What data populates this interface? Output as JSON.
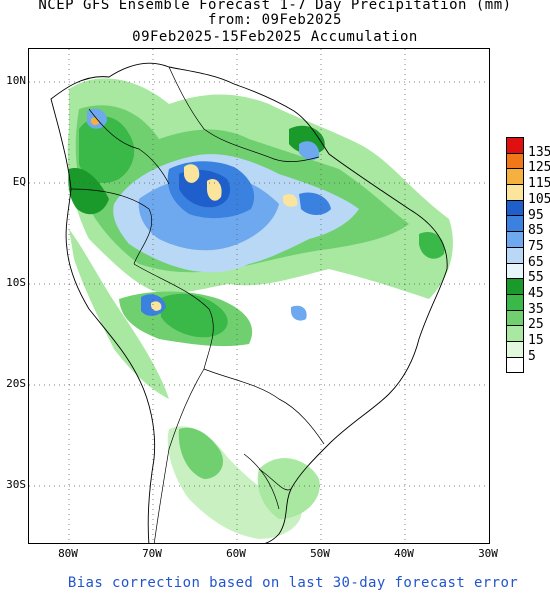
{
  "title": {
    "line1": "NCEP GFS Ensemble Forecast 1-7 Day Precipitation (mm)",
    "line2": "from: 09Feb2025",
    "line3": "09Feb2025-15Feb2025 Accumulation"
  },
  "footer": "Bias correction based on last 30-day forecast error",
  "axes": {
    "lat_labels": [
      "10N",
      "EQ",
      "10S",
      "20S",
      "30S"
    ],
    "lon_labels": [
      "80W",
      "70W",
      "60W",
      "50W",
      "40W",
      "30W"
    ]
  },
  "legend": {
    "labels": [
      "135",
      "125",
      "115",
      "105",
      "95",
      "85",
      "75",
      "65",
      "55",
      "45",
      "35",
      "25",
      "15",
      "5"
    ],
    "colors": [
      "#e01010",
      "#f07818",
      "#f5b040",
      "#fbe49c",
      "#1e5fcc",
      "#3b82e0",
      "#6ea8ee",
      "#b8d8f5",
      "#e8f6fb",
      "#1a9a2a",
      "#3ab848",
      "#70d070",
      "#a8e8a0",
      "#e2f8dc",
      "#ffffff"
    ]
  },
  "chart_data": {
    "type": "heatmap",
    "units": "mm",
    "lat_range": [
      "10N",
      "35S"
    ],
    "lon_range": [
      "80W",
      "30W"
    ],
    "grid": "dotted",
    "legend_position": "right"
  }
}
